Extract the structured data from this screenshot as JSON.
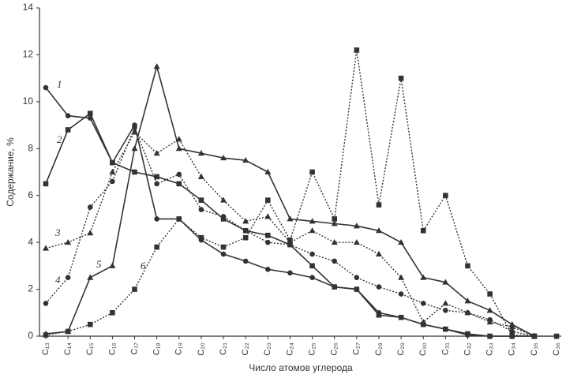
{
  "chart_data": {
    "type": "line",
    "y_label": "Содержание, %",
    "x_label": "Число атомов углерода",
    "categories": [
      "C₁₃",
      "C₁₄",
      "C₁₅",
      "C₁₆",
      "C₁₇",
      "C₁₈",
      "C₁₉",
      "C₂₀",
      "C₂₁",
      "C₂₂",
      "C₂₃",
      "C₂₄",
      "C₂₅",
      "C₂₆",
      "C₂₇",
      "C₂₈",
      "C₂₉",
      "C₃₀",
      "C₃₁",
      "C₃₂",
      "C₃₃",
      "C₃₄",
      "C₃₅",
      "C₃₆"
    ],
    "ylim": [
      0,
      14
    ],
    "yticks": [
      0,
      2,
      4,
      6,
      8,
      10,
      12,
      14
    ],
    "series": [
      {
        "name": "1",
        "color": "#333333",
        "dash": "solid",
        "marker": "circle",
        "values": [
          10.6,
          9.4,
          9.3,
          7.4,
          9.0,
          5.0,
          5.0,
          4.1,
          3.5,
          3.2,
          2.85,
          2.7,
          2.5,
          2.1,
          2.0,
          1.0,
          0.8,
          0.5,
          0.3,
          0.05,
          0,
          0,
          0,
          null
        ]
      },
      {
        "name": "2",
        "color": "#333333",
        "dash": "solid",
        "marker": "square",
        "values": [
          6.5,
          8.8,
          9.5,
          7.4,
          7.0,
          6.8,
          6.5,
          5.8,
          5.0,
          4.5,
          4.3,
          3.9,
          3.0,
          2.1,
          2.0,
          0.9,
          0.8,
          0.5,
          0.3,
          0.1,
          0,
          0,
          0,
          null
        ]
      },
      {
        "name": "3",
        "color": "#333333",
        "dash": "dotted",
        "marker": "triangle",
        "values": [
          3.75,
          4.0,
          4.4,
          7.0,
          8.7,
          7.8,
          8.4,
          6.8,
          5.8,
          4.9,
          5.1,
          4.0,
          4.5,
          4.0,
          4.0,
          3.5,
          2.5,
          0.6,
          1.4,
          1.0,
          0.6,
          0.4,
          0,
          null
        ]
      },
      {
        "name": "4",
        "color": "#333333",
        "dash": "dotted",
        "marker": "circle",
        "values": [
          1.4,
          2.5,
          5.5,
          6.6,
          8.9,
          6.5,
          6.9,
          5.4,
          5.1,
          4.5,
          4.0,
          3.9,
          3.5,
          3.2,
          2.5,
          2.1,
          1.8,
          1.4,
          1.1,
          1.0,
          0.7,
          0.2,
          0,
          null
        ]
      },
      {
        "name": "5",
        "color": "#333333",
        "dash": "solid",
        "marker": "triangle",
        "values": [
          0.1,
          0.2,
          2.5,
          3.0,
          8.0,
          11.5,
          8.0,
          7.8,
          7.6,
          7.5,
          7.0,
          5.0,
          4.9,
          4.8,
          4.7,
          4.5,
          4.0,
          2.5,
          2.3,
          1.5,
          1.1,
          0.5,
          0,
          null
        ]
      },
      {
        "name": "6",
        "color": "#333333",
        "dash": "dotted",
        "marker": "square",
        "values": [
          0.05,
          0.2,
          0.5,
          1.0,
          2.0,
          3.8,
          5.0,
          4.2,
          3.8,
          4.2,
          5.8,
          4.1,
          7.0,
          5.0,
          12.2,
          5.6,
          11.0,
          4.5,
          6.0,
          3.0,
          1.8,
          0.05,
          0,
          0
        ]
      }
    ]
  }
}
